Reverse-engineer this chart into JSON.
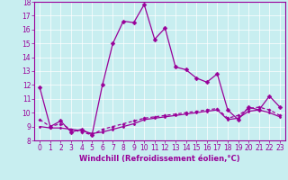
{
  "xlabel": "Windchill (Refroidissement éolien,°C)",
  "background_color": "#c8eef0",
  "line_color": "#990099",
  "xlim": [
    -0.5,
    23.5
  ],
  "ylim": [
    8,
    18
  ],
  "yticks": [
    8,
    9,
    10,
    11,
    12,
    13,
    14,
    15,
    16,
    17,
    18
  ],
  "xticks": [
    0,
    1,
    2,
    3,
    4,
    5,
    6,
    7,
    8,
    9,
    10,
    11,
    12,
    13,
    14,
    15,
    16,
    17,
    18,
    19,
    20,
    21,
    22,
    23
  ],
  "series1_x": [
    0,
    1,
    2,
    3,
    4,
    5,
    6,
    7,
    8,
    9,
    10,
    11,
    12,
    13,
    14,
    15,
    16,
    17,
    18,
    19,
    20,
    21,
    22,
    23
  ],
  "series1_y": [
    11.8,
    9.0,
    9.4,
    8.6,
    8.8,
    8.4,
    12.0,
    15.0,
    16.6,
    16.5,
    17.8,
    15.3,
    16.1,
    13.3,
    13.1,
    12.5,
    12.2,
    12.8,
    10.2,
    9.5,
    10.4,
    10.2,
    11.2,
    10.4
  ],
  "series2_x": [
    0,
    1,
    2,
    3,
    4,
    5,
    6,
    7,
    8,
    9,
    10,
    11,
    12,
    13,
    14,
    15,
    16,
    17,
    18,
    19,
    20,
    21,
    22,
    23
  ],
  "series2_y": [
    9.5,
    9.0,
    9.2,
    8.8,
    8.6,
    8.4,
    8.8,
    9.0,
    9.2,
    9.4,
    9.6,
    9.7,
    9.8,
    9.9,
    10.0,
    10.1,
    10.2,
    10.3,
    9.6,
    9.8,
    10.3,
    10.4,
    10.2,
    9.8
  ],
  "series3_x": [
    0,
    1,
    2,
    3,
    4,
    5,
    6,
    7,
    8,
    9,
    10,
    11,
    12,
    13,
    14,
    15,
    16,
    17,
    18,
    19,
    20,
    21,
    22,
    23
  ],
  "series3_y": [
    9.0,
    8.9,
    8.9,
    8.8,
    8.7,
    8.5,
    8.6,
    8.8,
    9.0,
    9.2,
    9.5,
    9.6,
    9.7,
    9.8,
    9.9,
    10.0,
    10.1,
    10.2,
    9.5,
    9.6,
    10.1,
    10.2,
    10.0,
    9.7
  ],
  "tick_fontsize": 5.5,
  "xlabel_fontsize": 6.0,
  "marker_size": 2.5,
  "line_width": 0.9
}
